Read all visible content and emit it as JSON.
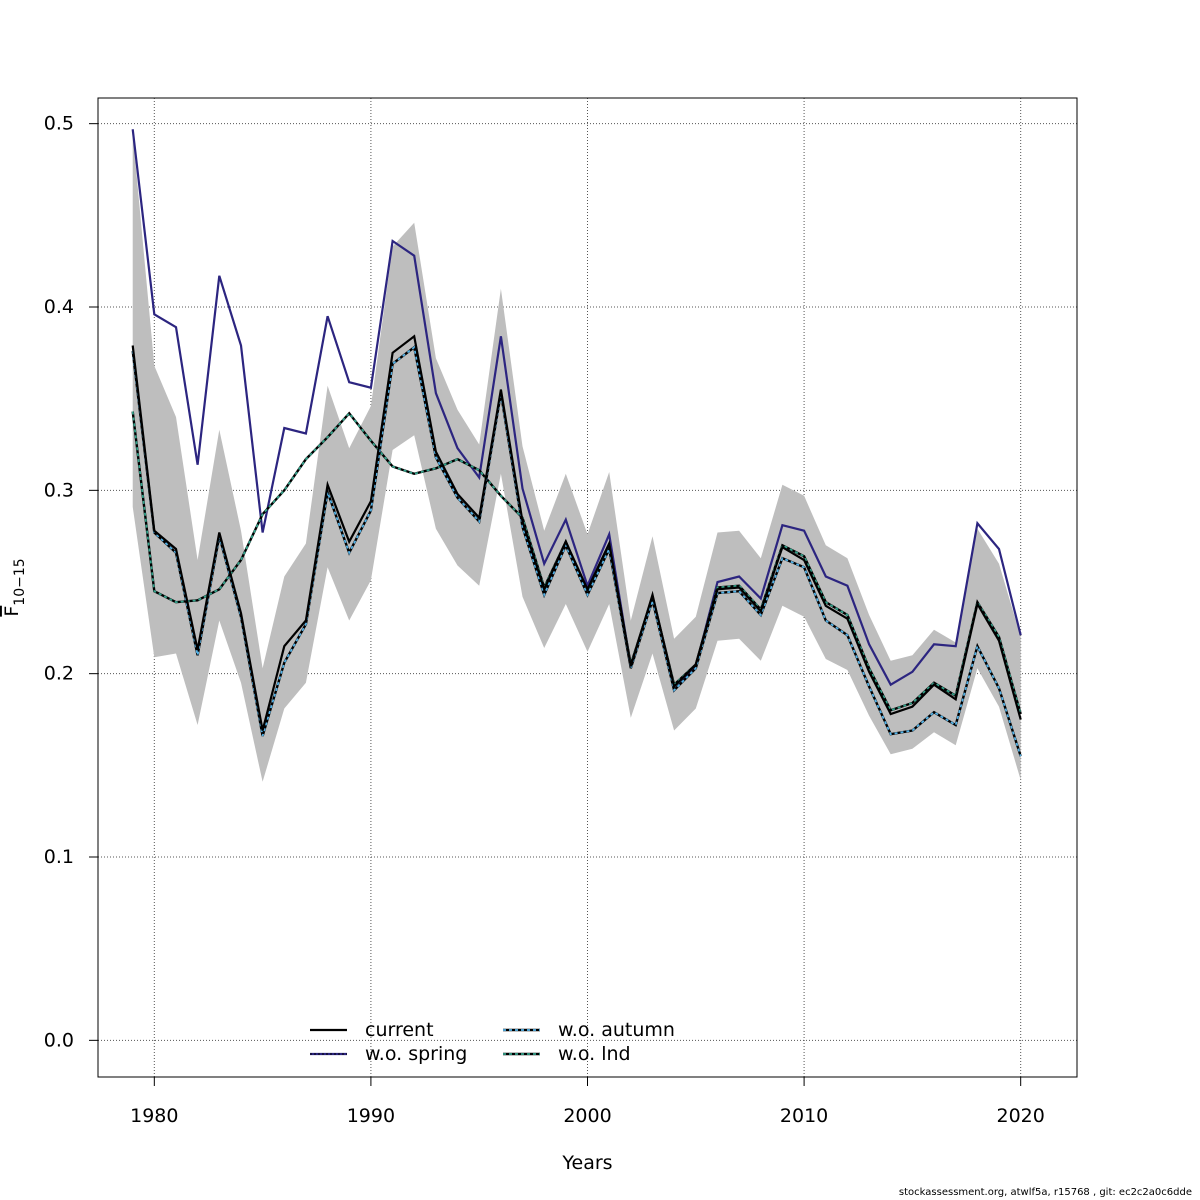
{
  "chart_data": {
    "type": "line",
    "xlabel": "Years",
    "ylabel": "F",
    "ylabel_sub": "10−15",
    "xlim": [
      1977.4,
      2022.6
    ],
    "ylim": [
      -0.02,
      0.514
    ],
    "xticks": [
      1980,
      1990,
      2000,
      2010,
      2020
    ],
    "xtick_labels": [
      "1980",
      "1990",
      "2000",
      "2010",
      "2020"
    ],
    "yticks": [
      0.0,
      0.1,
      0.2,
      0.3,
      0.4,
      0.5
    ],
    "ytick_labels": [
      "0.0",
      "0.1",
      "0.2",
      "0.3",
      "0.4",
      "0.5"
    ],
    "grid": true,
    "legend_position": "bottom-center",
    "x": [
      1979,
      1980,
      1981,
      1982,
      1983,
      1984,
      1985,
      1986,
      1987,
      1988,
      1989,
      1990,
      1991,
      1992,
      1993,
      1994,
      1995,
      1996,
      1997,
      1998,
      1999,
      2000,
      2001,
      2002,
      2003,
      2004,
      2005,
      2006,
      2007,
      2008,
      2009,
      2010,
      2011,
      2012,
      2013,
      2014,
      2015,
      2016,
      2017,
      2018,
      2019,
      2020
    ],
    "confidence_band": {
      "color": "#bebebe",
      "lower": [
        0.291,
        0.209,
        0.211,
        0.172,
        0.229,
        0.195,
        0.141,
        0.181,
        0.195,
        0.258,
        0.229,
        0.251,
        0.322,
        0.33,
        0.279,
        0.259,
        0.248,
        0.309,
        0.242,
        0.214,
        0.238,
        0.212,
        0.238,
        0.176,
        0.211,
        0.169,
        0.181,
        0.218,
        0.219,
        0.207,
        0.237,
        0.231,
        0.208,
        0.202,
        0.177,
        0.156,
        0.159,
        0.168,
        0.161,
        0.203,
        0.182,
        0.142
      ],
      "upper": [
        0.495,
        0.368,
        0.34,
        0.262,
        0.333,
        0.278,
        0.203,
        0.253,
        0.271,
        0.357,
        0.323,
        0.346,
        0.433,
        0.446,
        0.372,
        0.344,
        0.325,
        0.41,
        0.324,
        0.278,
        0.309,
        0.276,
        0.31,
        0.229,
        0.275,
        0.219,
        0.231,
        0.277,
        0.278,
        0.263,
        0.303,
        0.297,
        0.27,
        0.263,
        0.232,
        0.207,
        0.21,
        0.224,
        0.217,
        0.279,
        0.26,
        0.22
      ]
    },
    "series": [
      {
        "name": "current",
        "color": "#000000",
        "dash": "",
        "values": [
          0.379,
          0.278,
          0.268,
          0.213,
          0.277,
          0.233,
          0.169,
          0.215,
          0.229,
          0.303,
          0.272,
          0.294,
          0.375,
          0.384,
          0.321,
          0.298,
          0.285,
          0.355,
          0.283,
          0.246,
          0.272,
          0.246,
          0.271,
          0.204,
          0.243,
          0.193,
          0.205,
          0.246,
          0.247,
          0.234,
          0.269,
          0.262,
          0.237,
          0.23,
          0.201,
          0.178,
          0.182,
          0.194,
          0.186,
          0.238,
          0.218,
          0.175
        ]
      },
      {
        "name": "w.o. spring",
        "color": "#2c2580",
        "dash": "",
        "values": [
          0.497,
          0.396,
          0.389,
          0.314,
          0.417,
          0.379,
          0.277,
          0.334,
          0.331,
          0.395,
          0.359,
          0.356,
          0.436,
          0.428,
          0.353,
          0.323,
          0.307,
          0.384,
          0.301,
          0.26,
          0.284,
          0.248,
          0.276,
          0.204,
          0.242,
          0.191,
          0.204,
          0.25,
          0.253,
          0.241,
          0.281,
          0.278,
          0.253,
          0.248,
          0.216,
          0.194,
          0.201,
          0.216,
          0.215,
          0.282,
          0.268,
          0.221
        ]
      },
      {
        "name": "w.o. autumn",
        "color": "#56b4e9",
        "dash": "3,3",
        "values": [
          0.376,
          0.277,
          0.266,
          0.21,
          0.275,
          0.231,
          0.166,
          0.206,
          0.227,
          0.299,
          0.266,
          0.289,
          0.369,
          0.378,
          0.318,
          0.296,
          0.283,
          0.353,
          0.28,
          0.243,
          0.27,
          0.243,
          0.268,
          0.203,
          0.24,
          0.191,
          0.203,
          0.244,
          0.245,
          0.232,
          0.263,
          0.258,
          0.229,
          0.221,
          0.193,
          0.167,
          0.169,
          0.179,
          0.172,
          0.215,
          0.192,
          0.155
        ]
      },
      {
        "name": "w.o. lnd",
        "color": "#35a38c",
        "dash": "3,3",
        "values": [
          0.343,
          0.245,
          0.239,
          0.24,
          0.246,
          0.262,
          0.287,
          0.3,
          0.317,
          0.329,
          0.342,
          0.327,
          0.313,
          0.309,
          0.312,
          0.317,
          0.311,
          0.297,
          0.285,
          0.247,
          0.272,
          0.244,
          0.27,
          0.205,
          0.242,
          0.194,
          0.205,
          0.247,
          0.248,
          0.235,
          0.27,
          0.264,
          0.239,
          0.232,
          0.203,
          0.18,
          0.184,
          0.195,
          0.188,
          0.239,
          0.22,
          0.178
        ]
      }
    ]
  },
  "footer": "stockassessment.org, atwlf5a, r15768 , git: ec2c2a0c6dde"
}
